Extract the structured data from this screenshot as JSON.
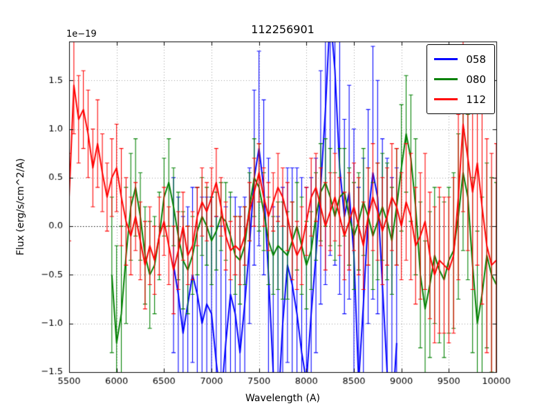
{
  "chart_data": {
    "type": "line",
    "title": "112256901",
    "xlabel": "Wavelength (A)",
    "ylabel": "Flux (erg/s/cm^2/A)",
    "y_offset_text": "1e−19",
    "xlim": [
      5500,
      10000
    ],
    "ylim": [
      -1.5,
      1.9
    ],
    "x_ticks": [
      5500,
      6000,
      6500,
      7000,
      7500,
      8000,
      8500,
      9000,
      9500,
      10000
    ],
    "x_tick_labels": [
      "5500",
      "6000",
      "6500",
      "7000",
      "7500",
      "8000",
      "8500",
      "9000",
      "9500",
      "10000"
    ],
    "y_ticks": [
      -1.5,
      -1.0,
      -0.5,
      0.0,
      0.5,
      1.0,
      1.5
    ],
    "y_tick_labels": [
      "−1.5",
      "−1.0",
      "−0.5",
      "0.0",
      "0.5",
      "1.0",
      "1.5"
    ],
    "grid": true,
    "grid_style": "dotted",
    "zero_line": true,
    "legend_position": "upper right",
    "error_bars": true,
    "cap_size": 3,
    "series": [
      {
        "name": "058",
        "color": "#0000ff",
        "x_start": 6600,
        "x_step": 50,
        "values": [
          -0.4,
          -0.7,
          -1.1,
          -0.8,
          -0.5,
          -0.7,
          -1.0,
          -0.8,
          -0.9,
          -1.4,
          -1.8,
          -1.2,
          -0.7,
          -0.9,
          -1.3,
          -0.8,
          -0.2,
          0.5,
          0.8,
          0.4,
          -0.5,
          -1.5,
          -1.9,
          -1.0,
          -0.4,
          -0.6,
          -0.9,
          -1.3,
          -1.6,
          -0.9,
          -0.3,
          0.4,
          1.2,
          2.2,
          1.6,
          0.6,
          0.1,
          0.35,
          -0.3,
          -1.6,
          -0.8,
          0.1,
          0.55,
          0.3,
          -0.6,
          -1.5,
          -2.0,
          -1.2
        ],
        "errors": [
          0.9,
          1.0,
          1.2,
          1.0,
          0.9,
          1.1,
          1.3,
          1.1,
          1.2,
          1.5,
          1.8,
          1.4,
          1.0,
          1.2,
          1.5,
          1.1,
          0.8,
          0.9,
          1.0,
          0.9,
          1.2,
          1.7,
          2.0,
          1.4,
          1.0,
          1.2,
          1.5,
          1.8,
          2.0,
          1.4,
          1.0,
          1.2,
          1.8,
          2.5,
          2.0,
          1.3,
          1.0,
          1.1,
          1.3,
          2.0,
          1.5,
          1.1,
          1.3,
          1.2,
          1.5,
          2.2,
          2.5,
          1.8
        ]
      },
      {
        "name": "080",
        "color": "#008000",
        "x_start": 5950,
        "x_step": 50,
        "values": [
          -0.5,
          -1.2,
          -0.9,
          -0.3,
          0.2,
          0.4,
          0.1,
          -0.3,
          -0.5,
          -0.4,
          -0.1,
          0.3,
          0.45,
          0.2,
          -0.1,
          -0.35,
          -0.45,
          -0.3,
          -0.05,
          0.1,
          0.0,
          -0.15,
          -0.05,
          0.1,
          0.05,
          -0.1,
          -0.3,
          -0.35,
          -0.2,
          0.2,
          0.5,
          0.4,
          0.15,
          -0.15,
          -0.3,
          -0.2,
          -0.25,
          -0.3,
          -0.15,
          0.0,
          -0.2,
          -0.4,
          -0.25,
          0.1,
          0.35,
          0.45,
          0.3,
          0.1,
          0.3,
          0.35,
          0.1,
          -0.1,
          0.05,
          0.25,
          0.1,
          -0.1,
          0.05,
          0.2,
          0.05,
          -0.15,
          0.2,
          0.6,
          0.95,
          0.7,
          0.2,
          -0.5,
          -0.85,
          -0.6,
          -0.3,
          -0.45,
          -0.55,
          -0.35,
          -0.25,
          0.1,
          0.55,
          0.3,
          -0.4,
          -1.0,
          -0.7,
          -0.3,
          -0.5,
          -0.6
        ],
        "errors": [
          0.8,
          1.0,
          0.9,
          0.7,
          0.55,
          0.5,
          0.45,
          0.5,
          0.55,
          0.5,
          0.45,
          0.4,
          0.45,
          0.4,
          0.45,
          0.5,
          0.45,
          0.4,
          0.45,
          0.4,
          0.4,
          0.45,
          0.4,
          0.35,
          0.4,
          0.45,
          0.4,
          0.45,
          0.4,
          0.35,
          0.4,
          0.45,
          0.4,
          0.45,
          0.4,
          0.45,
          0.5,
          0.45,
          0.4,
          0.45,
          0.5,
          0.45,
          0.4,
          0.45,
          0.5,
          0.45,
          0.5,
          0.45,
          0.5,
          0.45,
          0.5,
          0.55,
          0.5,
          0.55,
          0.5,
          0.55,
          0.6,
          0.55,
          0.6,
          0.55,
          0.6,
          0.65,
          0.6,
          0.65,
          0.7,
          0.75,
          0.7,
          0.75,
          0.7,
          0.75,
          0.8,
          0.75,
          0.8,
          0.85,
          0.8,
          0.85,
          0.9,
          0.95,
          1.0,
          0.95,
          1.0,
          1.05
        ]
      },
      {
        "name": "112",
        "color": "#ff0000",
        "x_start": 5500,
        "x_step": 50,
        "values": [
          0.3,
          1.45,
          1.1,
          1.2,
          0.95,
          0.6,
          0.85,
          0.55,
          0.3,
          0.5,
          0.6,
          0.3,
          0.05,
          -0.1,
          0.1,
          -0.15,
          -0.4,
          -0.2,
          -0.35,
          -0.1,
          0.05,
          -0.2,
          -0.45,
          -0.25,
          0.0,
          -0.3,
          -0.2,
          0.1,
          0.25,
          0.15,
          0.3,
          0.45,
          0.2,
          -0.1,
          -0.25,
          -0.2,
          -0.25,
          -0.1,
          0.15,
          0.35,
          0.55,
          0.3,
          0.1,
          0.25,
          0.4,
          0.3,
          0.1,
          -0.15,
          -0.3,
          -0.2,
          0.05,
          0.3,
          0.4,
          0.2,
          0.0,
          0.15,
          0.3,
          0.1,
          -0.1,
          0.05,
          0.2,
          0.0,
          -0.2,
          0.1,
          0.3,
          0.15,
          -0.05,
          0.1,
          0.3,
          0.2,
          0.0,
          0.25,
          0.1,
          -0.2,
          -0.1,
          0.05,
          -0.3,
          -0.5,
          -0.35,
          -0.4,
          -0.45,
          -0.3,
          0.3,
          1.05,
          0.7,
          0.35,
          0.65,
          0.2,
          -0.2,
          -0.4,
          -0.35
        ],
        "errors": [
          0.45,
          0.5,
          0.45,
          0.4,
          0.45,
          0.4,
          0.45,
          0.4,
          0.35,
          0.4,
          0.45,
          0.5,
          0.45,
          0.4,
          0.35,
          0.4,
          0.45,
          0.4,
          0.35,
          0.4,
          0.35,
          0.4,
          0.45,
          0.4,
          0.35,
          0.3,
          0.35,
          0.3,
          0.35,
          0.3,
          0.3,
          0.35,
          0.3,
          0.35,
          0.3,
          0.3,
          0.35,
          0.3,
          0.3,
          0.35,
          0.3,
          0.3,
          0.35,
          0.3,
          0.35,
          0.3,
          0.35,
          0.4,
          0.35,
          0.4,
          0.35,
          0.4,
          0.35,
          0.4,
          0.45,
          0.4,
          0.45,
          0.4,
          0.45,
          0.5,
          0.45,
          0.5,
          0.45,
          0.5,
          0.55,
          0.5,
          0.55,
          0.5,
          0.55,
          0.6,
          0.55,
          0.6,
          0.65,
          0.6,
          0.65,
          0.7,
          0.65,
          0.7,
          0.75,
          0.7,
          0.75,
          0.8,
          0.85,
          0.9,
          0.95,
          1.0,
          1.05,
          1.0,
          1.1,
          1.15,
          1.2
        ]
      }
    ]
  }
}
